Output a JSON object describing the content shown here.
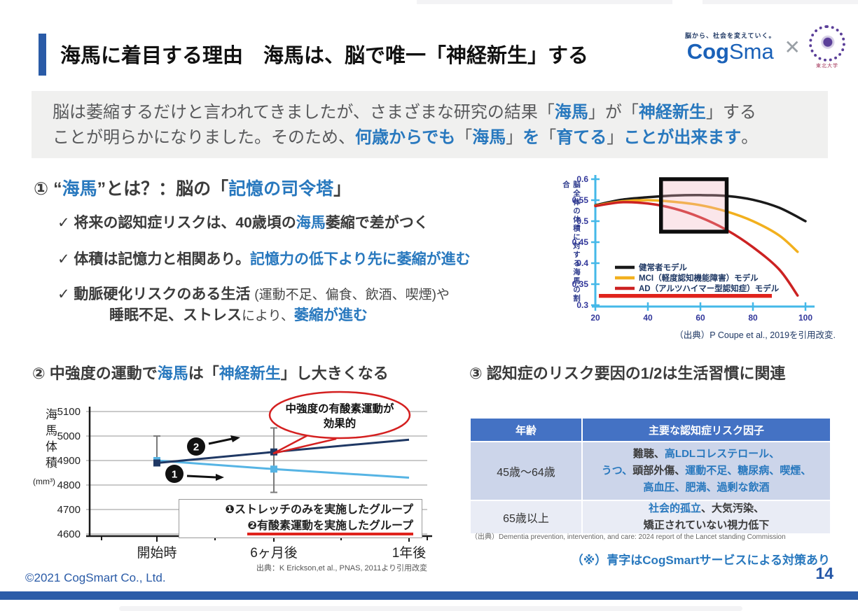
{
  "page": {
    "number": "14",
    "copyright": "©2021 CogSmart Co., Ltd."
  },
  "header": {
    "title": "海馬に着目する理由　海馬は、脳で唯一「神経新生」する",
    "logo": {
      "tagline": "脳から、社会を変えていく。",
      "brand_bold": "Cog",
      "brand_light": "Sma",
      "cross": "✕",
      "partner": "東北大学"
    }
  },
  "colors": {
    "accent": "#2a5ba7",
    "blue_text": "#2878be",
    "navy": "#1f3864",
    "cyan_axis": "#45b8e8",
    "yellow": "#f2b01e",
    "red": "#cc2222",
    "light_blue": "#56b4e4",
    "table_header": "#4472c4",
    "footer_bar": "#2b5ca8",
    "highlight_red": "#e0231c"
  },
  "intro": {
    "segments": [
      {
        "t": "脳は萎縮するだけと言われてきましたが、さまざまな研究の結果「"
      },
      {
        "t": "海馬"
      },
      {
        "t": "」が「"
      },
      {
        "t": "神経新生"
      },
      {
        "t": "」する"
      },
      {
        "t": "ことが明らかになりました。そのため、"
      },
      {
        "t": "何歳からでも"
      },
      {
        "t": "「"
      },
      {
        "t": "海馬"
      },
      {
        "t": "」"
      },
      {
        "t": "を"
      },
      {
        "t": "「"
      },
      {
        "t": "育てる"
      },
      {
        "t": "」"
      },
      {
        "t": "ことが出来ます"
      },
      {
        "t": "。"
      }
    ]
  },
  "section1": {
    "heading": [
      {
        "t": "① “"
      },
      {
        "t": "海馬"
      },
      {
        "t": "”とは？：脳の「"
      },
      {
        "t": "記憶の司令塔"
      },
      {
        "t": "」"
      }
    ],
    "bullet1": [
      {
        "t": "✓ 将来の認知症リスクは、40歳頃の"
      },
      {
        "t": "海馬"
      },
      {
        "t": "萎縮で差がつく"
      }
    ],
    "bullet2": [
      {
        "t": "✓ 体積は記憶力と相関あり。"
      },
      {
        "t": "記憶力の低下より先に萎縮が進む"
      }
    ],
    "bullet3a": [
      {
        "t": "✓ 動脈硬化リスクのある生活 "
      },
      {
        "t": "(運動不足、偏食、飲酒、喫煙)や"
      }
    ],
    "bullet3b": [
      {
        "t": "睡眠不足、ストレス"
      },
      {
        "t": "により、"
      },
      {
        "t": "萎縮が進む"
      }
    ]
  },
  "section2": {
    "heading": [
      {
        "t": "② 中強度の運動で"
      },
      {
        "t": "海馬"
      },
      {
        "t": "は「"
      },
      {
        "t": "神経新生"
      },
      {
        "t": "」し大きくなる"
      }
    ]
  },
  "section3": {
    "heading": "③ 認知症のリスク要因の1/2は生活習慣に関連",
    "table": {
      "headers": [
        "年齢",
        "主要な認知症リスク因子"
      ],
      "rows": [
        {
          "age": "45歳〜64歳",
          "lines": [
            [
              {
                "t": "難聴、"
              },
              {
                "t": "高LDLコレステロール、"
              }
            ],
            [
              {
                "t": "うつ、"
              },
              {
                "t": "頭部外傷、"
              },
              {
                "t": "運動不足、糖尿病、喫煙、"
              }
            ],
            [
              {
                "t": "高血圧、肥満、過剰な飲酒"
              }
            ]
          ]
        },
        {
          "age": "65歳以上",
          "lines": [
            [
              {
                "t": "社会的孤立"
              },
              {
                "t": "、大気汚染、"
              }
            ],
            [
              {
                "t": "矯正されていない視力低下"
              }
            ]
          ]
        }
      ]
    },
    "source": "（出典）Dementia prevention, intervention, and care: 2024 report of the Lancet standing Commission",
    "note": "（※）青字はCogSmartサービスによる対策あり"
  },
  "chart_data": [
    {
      "type": "line",
      "title": "",
      "ylabel": "脳全体の体積に対する海馬の割合",
      "xlabel": "",
      "ylim": [
        0.3,
        0.6
      ],
      "yticks": [
        0.3,
        0.35,
        0.4,
        0.45,
        0.5,
        0.55,
        0.6
      ],
      "xticks": [
        20,
        40,
        60,
        80,
        100
      ],
      "axis_color": "#45b8e8",
      "legend_position": "lower-left-inside",
      "grid": false,
      "series": [
        {
          "name": "健常者モデル",
          "color": "#1a1a1a",
          "points": [
            [
              20,
              0.538
            ],
            [
              30,
              0.551
            ],
            [
              40,
              0.557
            ],
            [
              50,
              0.561
            ],
            [
              60,
              0.562
            ],
            [
              70,
              0.56
            ],
            [
              80,
              0.551
            ],
            [
              90,
              0.532
            ],
            [
              100,
              0.5
            ]
          ]
        },
        {
          "name": "MCI（軽度認知機能障害）モデル",
          "color": "#f2b01e",
          "points": [
            [
              20,
              0.537
            ],
            [
              30,
              0.547
            ],
            [
              40,
              0.55
            ],
            [
              50,
              0.546
            ],
            [
              60,
              0.538
            ],
            [
              70,
              0.523
            ],
            [
              80,
              0.5
            ],
            [
              90,
              0.466
            ],
            [
              97,
              0.427
            ]
          ]
        },
        {
          "name": "AD（アルツハイマー型認知症）モデル",
          "color": "#cc2222",
          "points": [
            [
              20,
              0.536
            ],
            [
              30,
              0.545
            ],
            [
              40,
              0.542
            ],
            [
              50,
              0.53
            ],
            [
              60,
              0.509
            ],
            [
              70,
              0.479
            ],
            [
              80,
              0.438
            ],
            [
              90,
              0.385
            ],
            [
              97,
              0.323
            ]
          ]
        }
      ],
      "highlight_box": {
        "x1": 45,
        "x2": 70,
        "y1": 0.475,
        "y2": 0.6
      },
      "caption": "（出典）P Coupe et al., 2019を引用改変."
    },
    {
      "type": "line",
      "title": "",
      "ylabel": "海馬体積",
      "ylabel_unit": "(mm³)",
      "categories": [
        "開始時",
        "6ヶ月後",
        "1年後"
      ],
      "ylim": [
        4600,
        5150
      ],
      "yticks": [
        4600,
        4700,
        4800,
        4900,
        5000,
        5100
      ],
      "grid": true,
      "series": [
        {
          "name": "❶ストレッチのみを実施したグループ",
          "color": "#56b4e4",
          "values": [
            4900,
            4865,
            4830
          ],
          "marker_at": [
            0,
            1
          ]
        },
        {
          "name": "❷有酸素運動を実施したグループ",
          "color": "#1f3864",
          "values": [
            4890,
            4935,
            4985
          ],
          "marker_at": [
            0,
            1
          ]
        }
      ],
      "error_bars": [
        {
          "x": 0,
          "from": 4890,
          "to": 5000
        },
        {
          "x": 1,
          "from": 4770,
          "to": 5033
        }
      ],
      "annotations": [
        "1",
        "2"
      ],
      "bubble": "中強度の有酸素運動が\n効果的",
      "legend": [
        "❶ストレッチのみを実施したグループ",
        "❷有酸素運動を実施したグループ"
      ],
      "source": "出典：K Erickson,et al., PNAS, 2011より引用改変"
    }
  ]
}
